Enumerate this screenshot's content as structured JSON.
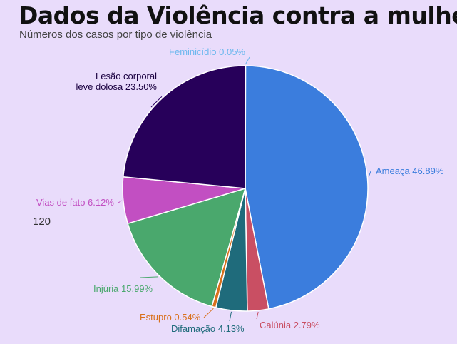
{
  "header": {
    "title": "Dados da Violência contra a mulher",
    "subtitle": "Números dos casos por tipo de violência"
  },
  "side_number": "120",
  "chart_data": {
    "type": "pie",
    "title": "Dados da Violência contra a mulher",
    "subtitle": "Números dos casos por tipo de violência",
    "unit": "%",
    "slices": [
      {
        "label": "Feminicídio",
        "value": 0.05,
        "value_text": "0.05%",
        "color": "#6cb8ee"
      },
      {
        "label": "Ameaça",
        "value": 46.89,
        "value_text": "46.89%",
        "color": "#3b7ddd"
      },
      {
        "label": "Calúnia",
        "value": 2.79,
        "value_text": "2.79%",
        "color": "#c94f63"
      },
      {
        "label": "Difamação",
        "value": 4.13,
        "value_text": "4.13%",
        "color": "#1f6b7b"
      },
      {
        "label": "Estupro",
        "value": 0.54,
        "value_text": "0.54%",
        "color": "#d9701c"
      },
      {
        "label": "Injúria",
        "value": 15.99,
        "value_text": "15.99%",
        "color": "#4aa86d"
      },
      {
        "label": "Vias de fato",
        "value": 6.12,
        "value_text": "6.12%",
        "color": "#c24fc2"
      },
      {
        "label": "Lesão corporal leve dolosa",
        "value": 23.5,
        "value_text": "23.50%",
        "color": "#27005a",
        "label_lines": [
          "Lesão corporal",
          "leve dolosa 23.50%"
        ]
      }
    ],
    "start_angle_deg": -90,
    "direction": "clockwise",
    "slice_stroke": "#ffffff",
    "legend": "none"
  }
}
